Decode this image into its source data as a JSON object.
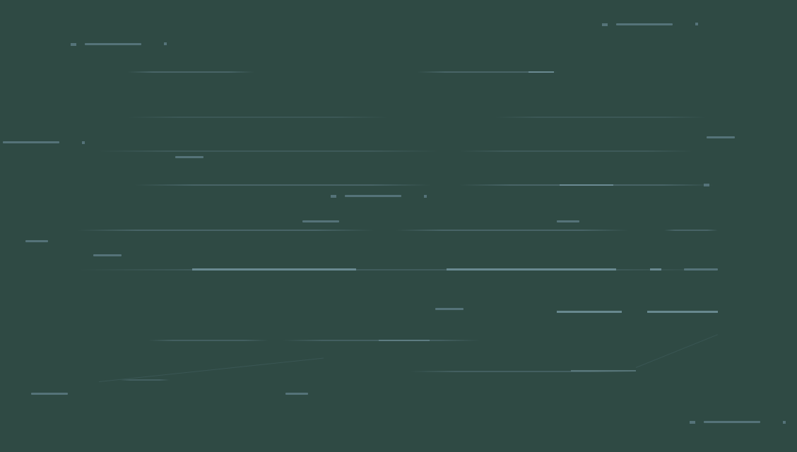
{
  "canvas": {
    "description_visible_text": "",
    "background_color": "#2f4a44",
    "line_color": "#5c7a83"
  }
}
